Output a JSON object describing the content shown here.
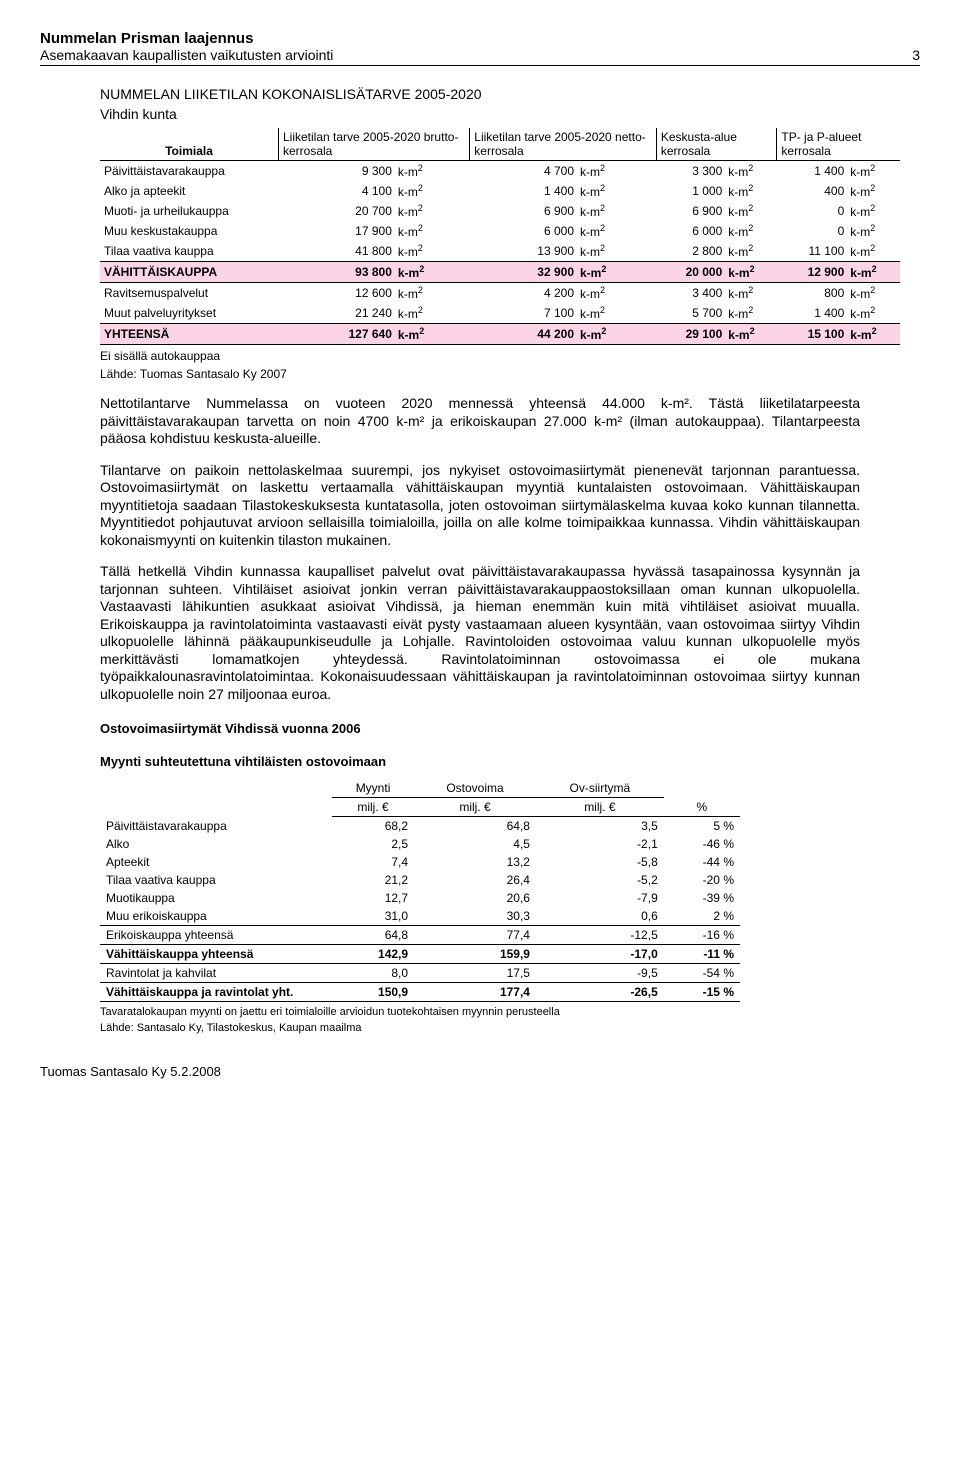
{
  "header": {
    "title": "Nummelan Prisman laajennus",
    "sub": "Asemakaavan kaupallisten vaikutusten arviointi",
    "page": "3"
  },
  "section1": {
    "title": "NUMMELAN LIIKETILAN KOKONAISLISÄTARVE 2005-2020",
    "sub": "Vihdin kunta",
    "cols": [
      "Toimiala",
      "Liiketilan tarve 2005-2020 brutto-kerrosala",
      "Liiketilan tarve 2005-2020 netto-kerrosala",
      "Keskusta-alue kerrosala",
      "TP- ja P-alueet kerrosala"
    ],
    "unit": "k-m",
    "rows": [
      {
        "label": "Päivittäistavarakauppa",
        "v": [
          "9 300",
          "4 700",
          "3 300",
          "1 400"
        ]
      },
      {
        "label": "Alko ja apteekit",
        "v": [
          "4 100",
          "1 400",
          "1 000",
          "400"
        ]
      },
      {
        "label": "Muoti- ja urheilukauppa",
        "v": [
          "20 700",
          "6 900",
          "6 900",
          "0"
        ]
      },
      {
        "label": "Muu keskustakauppa",
        "v": [
          "17 900",
          "6 000",
          "6 000",
          "0"
        ]
      },
      {
        "label": "Tilaa vaativa kauppa",
        "v": [
          "41 800",
          "13 900",
          "2 800",
          "11 100"
        ]
      }
    ],
    "pinkrow": {
      "label": "VÄHITTÄISKAUPPA",
      "v": [
        "93 800",
        "32 900",
        "20 000",
        "12 900"
      ]
    },
    "rows2": [
      {
        "label": "Ravitsemuspalvelut",
        "v": [
          "12 600",
          "4 200",
          "3 400",
          "800"
        ]
      },
      {
        "label": "Muut palveluyritykset",
        "v": [
          "21 240",
          "7 100",
          "5 700",
          "1 400"
        ]
      }
    ],
    "totalrow": {
      "label": "YHTEENSÄ",
      "v": [
        "127 640",
        "44 200",
        "29 100",
        "15 100"
      ]
    },
    "note1": "Ei sisällä autokauppaa",
    "note2": "Lähde: Tuomas Santasalo Ky 2007"
  },
  "para1": "Nettotilantarve Nummelassa on vuoteen 2020 mennessä yhteensä 44.000 k-m². Tästä liiketilatarpeesta päivittäistavarakaupan tarvetta on noin 4700 k-m² ja erikoiskaupan 27.000 k-m² (ilman autokauppaa). Tilantarpeesta pääosa kohdistuu keskusta-alueille.",
  "para2": "Tilantarve on paikoin nettolaskelmaa suurempi, jos nykyiset ostovoimasiirtymät pienenevät tarjonnan parantuessa. Ostovoimasiirtymät on laskettu vertaamalla vähittäiskaupan myyntiä kuntalaisten ostovoimaan. Vähittäiskaupan myyntitietoja saadaan Tilastokeskuksesta kuntatasolla, joten ostovoiman siirtymälaskelma kuvaa koko kunnan tilannetta. Myyntitiedot pohjautuvat arvioon sellaisilla toimialoilla, joilla on alle kolme toimipaikkaa kunnassa. Vihdin vähittäiskaupan kokonaismyynti on kuitenkin tilaston mukainen.",
  "para3": "Tällä hetkellä Vihdin kunnassa kaupalliset palvelut ovat päivittäistavarakaupassa hyvässä tasapainossa kysynnän ja tarjonnan suhteen. Vihtiläiset asioivat jonkin verran päivittäistavarakauppaostoksillaan oman kunnan ulkopuolella. Vastaavasti lähikuntien asukkaat asioivat Vihdissä, ja hieman enemmän kuin mitä vihtiläiset asioivat muualla. Erikoiskauppa ja ravintolatoiminta vastaavasti eivät pysty vastaamaan alueen kysyntään, vaan ostovoimaa siirtyy Vihdin ulkopuolelle lähinnä pääkaupunkiseudulle ja Lohjalle. Ravintoloiden ostovoimaa valuu kunnan ulkopuolelle myös merkittävästi lomamatkojen yhteydessä. Ravintolatoiminnan ostovoimassa ei ole mukana työpaikkalounasravintolatoimintaa. Kokonaisuudessaan vähittäiskaupan ja ravintolatoiminnan ostovoimaa siirtyy kunnan ulkopuolelle noin 27 miljoonaa euroa.",
  "section2": {
    "title1": "Ostovoimasiirtymät Vihdissä vuonna 2006",
    "title2": "Myynti suhteutettuna vihtiläisten ostovoimaan",
    "head1": [
      "Myynti",
      "Ostovoima",
      "Ov-siirtymä",
      ""
    ],
    "head2": [
      "milj. €",
      "milj. €",
      "milj. €",
      "%"
    ],
    "rows": [
      {
        "label": "Päivittäistavarakauppa",
        "v": [
          "68,2",
          "64,8",
          "3,5",
          "5 %"
        ]
      },
      {
        "label": "Alko",
        "v": [
          "2,5",
          "4,5",
          "-2,1",
          "-46 %"
        ]
      },
      {
        "label": "Apteekit",
        "v": [
          "7,4",
          "13,2",
          "-5,8",
          "-44 %"
        ]
      },
      {
        "label": "Tilaa vaativa kauppa",
        "v": [
          "21,2",
          "26,4",
          "-5,2",
          "-20 %"
        ]
      },
      {
        "label": "Muotikauppa",
        "v": [
          "12,7",
          "20,6",
          "-7,9",
          "-39 %"
        ]
      },
      {
        "label": "Muu erikoiskauppa",
        "v": [
          "31,0",
          "30,3",
          "0,6",
          "2 %"
        ]
      }
    ],
    "sub1": {
      "label": "Erikoiskauppa yhteensä",
      "v": [
        "64,8",
        "77,4",
        "-12,5",
        "-16 %"
      ]
    },
    "sub2": {
      "label": "Vähittäiskauppa yhteensä",
      "v": [
        "142,9",
        "159,9",
        "-17,0",
        "-11 %"
      ],
      "bold": true
    },
    "sub3": {
      "label": "Ravintolat ja kahvilat",
      "v": [
        "8,0",
        "17,5",
        "-9,5",
        "-54 %"
      ]
    },
    "total": {
      "label": "Vähittäiskauppa ja ravintolat yht.",
      "v": [
        "150,9",
        "177,4",
        "-26,5",
        "-15 %"
      ],
      "bold": true
    },
    "note1": "Tavaratalokaupan myynti on jaettu eri toimialoille arvioidun tuotekohtaisen myynnin perusteella",
    "note2": "Lähde: Santasalo Ky, Tilastokeskus, Kaupan maailma"
  },
  "footer": "Tuomas Santasalo Ky   5.2.2008"
}
